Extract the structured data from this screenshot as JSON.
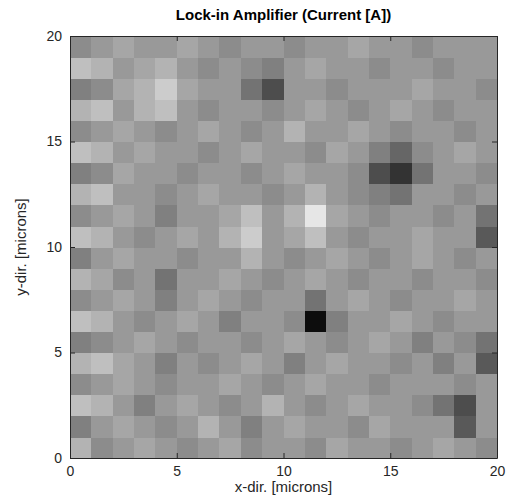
{
  "chart_data": {
    "type": "heatmap",
    "title": "Lock-in Amplifier (Current [A])",
    "x_label": "x-dir. [microns]",
    "y_label": "y-dir. [microns]",
    "xlim": [
      0,
      20
    ],
    "ylim": [
      0,
      20
    ],
    "xticks": [
      0,
      5,
      10,
      15,
      20
    ],
    "yticks": [
      0,
      5,
      10,
      15,
      20
    ],
    "color": "gray",
    "color_range": [
      0,
      1
    ],
    "cells": [
      [
        0.7,
        0.55,
        0.6,
        0.65,
        0.6,
        0.55,
        0.6,
        0.65,
        0.55,
        0.6,
        0.6,
        0.55,
        0.65,
        0.6,
        0.6,
        0.55,
        0.6,
        0.65,
        0.6,
        0.55
      ],
      [
        0.5,
        0.6,
        0.65,
        0.6,
        0.55,
        0.6,
        0.7,
        0.6,
        0.5,
        0.6,
        0.65,
        0.6,
        0.6,
        0.55,
        0.65,
        0.6,
        0.6,
        0.6,
        0.35,
        0.6
      ],
      [
        0.75,
        0.7,
        0.6,
        0.5,
        0.6,
        0.65,
        0.6,
        0.55,
        0.6,
        0.7,
        0.6,
        0.55,
        0.6,
        0.65,
        0.6,
        0.6,
        0.55,
        0.45,
        0.3,
        0.6
      ],
      [
        0.55,
        0.6,
        0.65,
        0.6,
        0.55,
        0.6,
        0.6,
        0.65,
        0.6,
        0.55,
        0.6,
        0.65,
        0.6,
        0.6,
        0.55,
        0.6,
        0.6,
        0.6,
        0.55,
        0.6
      ],
      [
        0.7,
        0.75,
        0.65,
        0.6,
        0.5,
        0.6,
        0.55,
        0.6,
        0.65,
        0.6,
        0.5,
        0.6,
        0.65,
        0.6,
        0.6,
        0.55,
        0.6,
        0.5,
        0.6,
        0.35
      ],
      [
        0.5,
        0.55,
        0.6,
        0.65,
        0.6,
        0.55,
        0.6,
        0.6,
        0.55,
        0.6,
        0.65,
        0.6,
        0.55,
        0.6,
        0.65,
        0.6,
        0.5,
        0.6,
        0.55,
        0.45
      ],
      [
        0.75,
        0.7,
        0.6,
        0.55,
        0.6,
        0.65,
        0.6,
        0.5,
        0.6,
        0.6,
        0.55,
        0.05,
        0.5,
        0.6,
        0.6,
        0.65,
        0.6,
        0.55,
        0.6,
        0.6
      ],
      [
        0.55,
        0.6,
        0.65,
        0.6,
        0.5,
        0.6,
        0.65,
        0.6,
        0.55,
        0.6,
        0.6,
        0.45,
        0.6,
        0.65,
        0.6,
        0.55,
        0.6,
        0.6,
        0.65,
        0.6
      ],
      [
        0.7,
        0.65,
        0.55,
        0.6,
        0.45,
        0.6,
        0.6,
        0.65,
        0.6,
        0.55,
        0.6,
        0.65,
        0.6,
        0.55,
        0.6,
        0.6,
        0.55,
        0.6,
        0.6,
        0.55
      ],
      [
        0.5,
        0.6,
        0.65,
        0.6,
        0.6,
        0.55,
        0.6,
        0.6,
        0.7,
        0.6,
        0.55,
        0.6,
        0.65,
        0.6,
        0.55,
        0.6,
        0.65,
        0.6,
        0.55,
        0.6
      ],
      [
        0.75,
        0.7,
        0.6,
        0.55,
        0.6,
        0.65,
        0.6,
        0.7,
        0.8,
        0.6,
        0.65,
        0.75,
        0.6,
        0.55,
        0.6,
        0.6,
        0.65,
        0.6,
        0.6,
        0.35
      ],
      [
        0.55,
        0.6,
        0.65,
        0.6,
        0.5,
        0.6,
        0.6,
        0.65,
        0.75,
        0.6,
        0.7,
        0.9,
        0.65,
        0.6,
        0.55,
        0.6,
        0.6,
        0.55,
        0.6,
        0.45
      ],
      [
        0.7,
        0.75,
        0.6,
        0.6,
        0.55,
        0.6,
        0.65,
        0.6,
        0.6,
        0.55,
        0.6,
        0.7,
        0.6,
        0.55,
        0.5,
        0.45,
        0.6,
        0.6,
        0.55,
        0.6
      ],
      [
        0.5,
        0.55,
        0.65,
        0.6,
        0.6,
        0.55,
        0.6,
        0.6,
        0.55,
        0.6,
        0.65,
        0.6,
        0.6,
        0.55,
        0.3,
        0.2,
        0.45,
        0.6,
        0.6,
        0.55
      ],
      [
        0.75,
        0.7,
        0.6,
        0.65,
        0.6,
        0.6,
        0.55,
        0.6,
        0.65,
        0.6,
        0.6,
        0.55,
        0.65,
        0.6,
        0.5,
        0.4,
        0.55,
        0.6,
        0.65,
        0.6
      ],
      [
        0.55,
        0.6,
        0.65,
        0.6,
        0.55,
        0.6,
        0.65,
        0.6,
        0.55,
        0.6,
        0.7,
        0.6,
        0.6,
        0.65,
        0.6,
        0.55,
        0.6,
        0.6,
        0.55,
        0.6
      ],
      [
        0.7,
        0.75,
        0.6,
        0.7,
        0.75,
        0.6,
        0.55,
        0.6,
        0.6,
        0.55,
        0.6,
        0.65,
        0.6,
        0.55,
        0.6,
        0.65,
        0.6,
        0.55,
        0.6,
        0.6
      ],
      [
        0.5,
        0.55,
        0.65,
        0.7,
        0.8,
        0.65,
        0.6,
        0.6,
        0.45,
        0.3,
        0.6,
        0.6,
        0.55,
        0.6,
        0.6,
        0.6,
        0.65,
        0.6,
        0.6,
        0.55
      ],
      [
        0.75,
        0.7,
        0.6,
        0.65,
        0.7,
        0.6,
        0.55,
        0.6,
        0.55,
        0.5,
        0.6,
        0.65,
        0.6,
        0.6,
        0.55,
        0.6,
        0.6,
        0.55,
        0.6,
        0.6
      ],
      [
        0.55,
        0.6,
        0.65,
        0.6,
        0.6,
        0.65,
        0.6,
        0.55,
        0.6,
        0.6,
        0.55,
        0.6,
        0.6,
        0.65,
        0.6,
        0.6,
        0.55,
        0.6,
        0.6,
        0.6
      ]
    ]
  }
}
